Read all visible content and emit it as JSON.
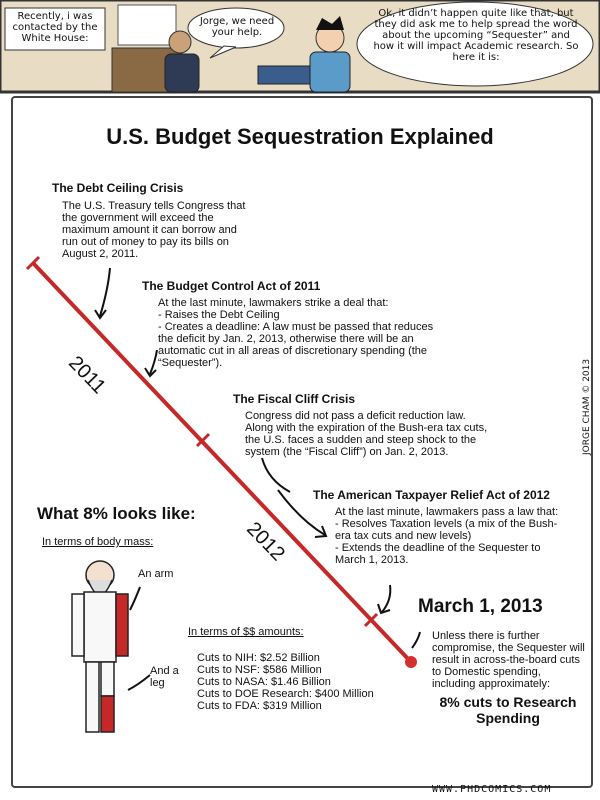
{
  "header": {
    "captions": [
      "Recently, i was contacted by the White House:",
      "Jorge, we need your help.",
      "Ok, it didn’t happen quite like that, but they did ask me to help spread the word about the upcoming “Sequester” and how it will impact Academic research. So here it is:"
    ]
  },
  "title": "U.S. Budget Sequestration Explained",
  "timeline": {
    "labels": [
      "2011",
      "2012"
    ]
  },
  "events": [
    {
      "title": "The Debt Ceiling Crisis",
      "body": "The U.S. Treasury tells Congress that the government will exceed the maximum amount it can borrow and run out of money to pay its bills on August 2, 2011."
    },
    {
      "title": "The Budget Control Act of 2011",
      "intro": "At the last minute, lawmakers strike a deal that:",
      "items": [
        "- Raises the Debt Ceiling",
        "- Creates a deadline: A law must be passed that reduces the deficit by Jan. 2, 2013, otherwise there will be an automatic cut in all areas of discretionary spending (the “Sequester”)."
      ]
    },
    {
      "title": "The Fiscal Cliff Crisis",
      "body": "Congress did not pass a deficit reduction law. Along with the expiration of the Bush-era tax cuts, the U.S. faces a sudden and steep shock to the system (the “Fiscal Cliff”) on Jan. 2, 2013."
    },
    {
      "title": "The American Taxpayer Relief Act of 2012",
      "intro": "At the last minute, lawmakers pass a law that:",
      "items": [
        "- Resolves Taxation levels (a mix of the Bush-era tax cuts and new levels)",
        "- Extends the deadline of the Sequester to March 1, 2013."
      ]
    }
  ],
  "final": {
    "date": "March 1, 2013",
    "body": "Unless there is further compromise, the Sequester will result in across-the-board cuts to Domestic spending, including approximately:",
    "result": "8% cuts to Research Spending"
  },
  "comparison": {
    "title": "What 8% looks like:",
    "body_mass": {
      "heading": "In terms of body mass:",
      "labels": [
        "An arm",
        "And a leg"
      ]
    },
    "dollars": {
      "heading": "In terms of $$ amounts:",
      "items": [
        "Cuts to NIH: $2.52 Billion",
        "Cuts to NSF: $586 Million",
        "Cuts to NASA: $1.46 Billion",
        "Cuts to DOE Research: $400 Million",
        "Cuts to FDA: $319 Million"
      ]
    }
  },
  "credit": "JORGE CHAM © 2013",
  "footer": "WWW.PHDCOMICS.COM"
}
